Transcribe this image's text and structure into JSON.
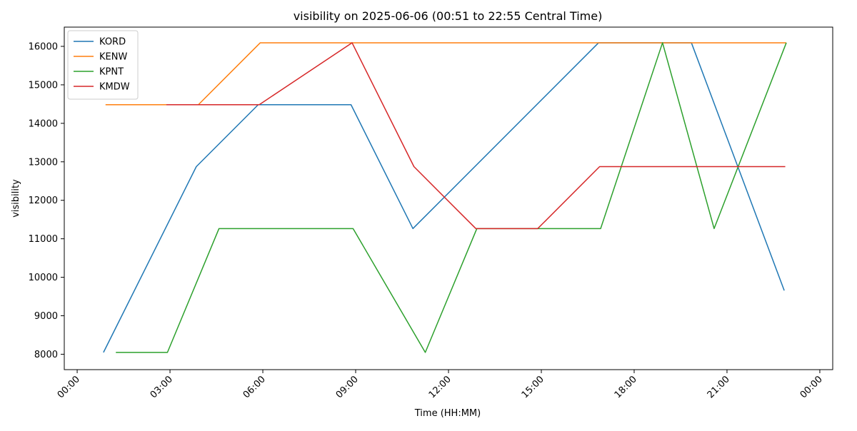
{
  "chart_data": {
    "type": "line",
    "title": "visibility on 2025-06-06 (00:51 to 22:55 Central Time)",
    "xlabel": "Time (HH:MM)",
    "ylabel": "visibility",
    "x_range": [
      "00:00",
      "24:00"
    ],
    "ylim": [
      7600,
      16500
    ],
    "x_ticks": [
      "00:00",
      "03:00",
      "06:00",
      "09:00",
      "12:00",
      "15:00",
      "18:00",
      "21:00",
      "00:00"
    ],
    "y_ticks": [
      8000,
      9000,
      10000,
      11000,
      12000,
      13000,
      14000,
      15000,
      16000
    ],
    "grid": false,
    "legend_position": "upper-left",
    "series": [
      {
        "name": "KORD",
        "color": "#1f77b4",
        "points": [
          [
            "00:51",
            8047
          ],
          [
            "03:51",
            12875
          ],
          [
            "05:51",
            14484
          ],
          [
            "08:51",
            14484
          ],
          [
            "10:51",
            11265
          ],
          [
            "16:51",
            16093
          ],
          [
            "19:51",
            16093
          ],
          [
            "22:51",
            9656
          ]
        ]
      },
      {
        "name": "KENW",
        "color": "#ff7f0e",
        "points": [
          [
            "00:55",
            14484
          ],
          [
            "03:55",
            14484
          ],
          [
            "05:55",
            16093
          ],
          [
            "22:55",
            16093
          ]
        ]
      },
      {
        "name": "KPNT",
        "color": "#2ca02c",
        "points": [
          [
            "01:15",
            8047
          ],
          [
            "02:55",
            8047
          ],
          [
            "04:35",
            11265
          ],
          [
            "08:55",
            11265
          ],
          [
            "11:15",
            8047
          ],
          [
            "12:55",
            11265
          ],
          [
            "16:55",
            11265
          ],
          [
            "18:55",
            16093
          ],
          [
            "20:35",
            11265
          ],
          [
            "22:55",
            16093
          ]
        ]
      },
      {
        "name": "KMDW",
        "color": "#d62728",
        "points": [
          [
            "02:53",
            14484
          ],
          [
            "05:53",
            14484
          ],
          [
            "08:53",
            16093
          ],
          [
            "10:53",
            12875
          ],
          [
            "12:53",
            11265
          ],
          [
            "14:53",
            11265
          ],
          [
            "16:53",
            12875
          ],
          [
            "22:53",
            12875
          ]
        ]
      }
    ]
  }
}
